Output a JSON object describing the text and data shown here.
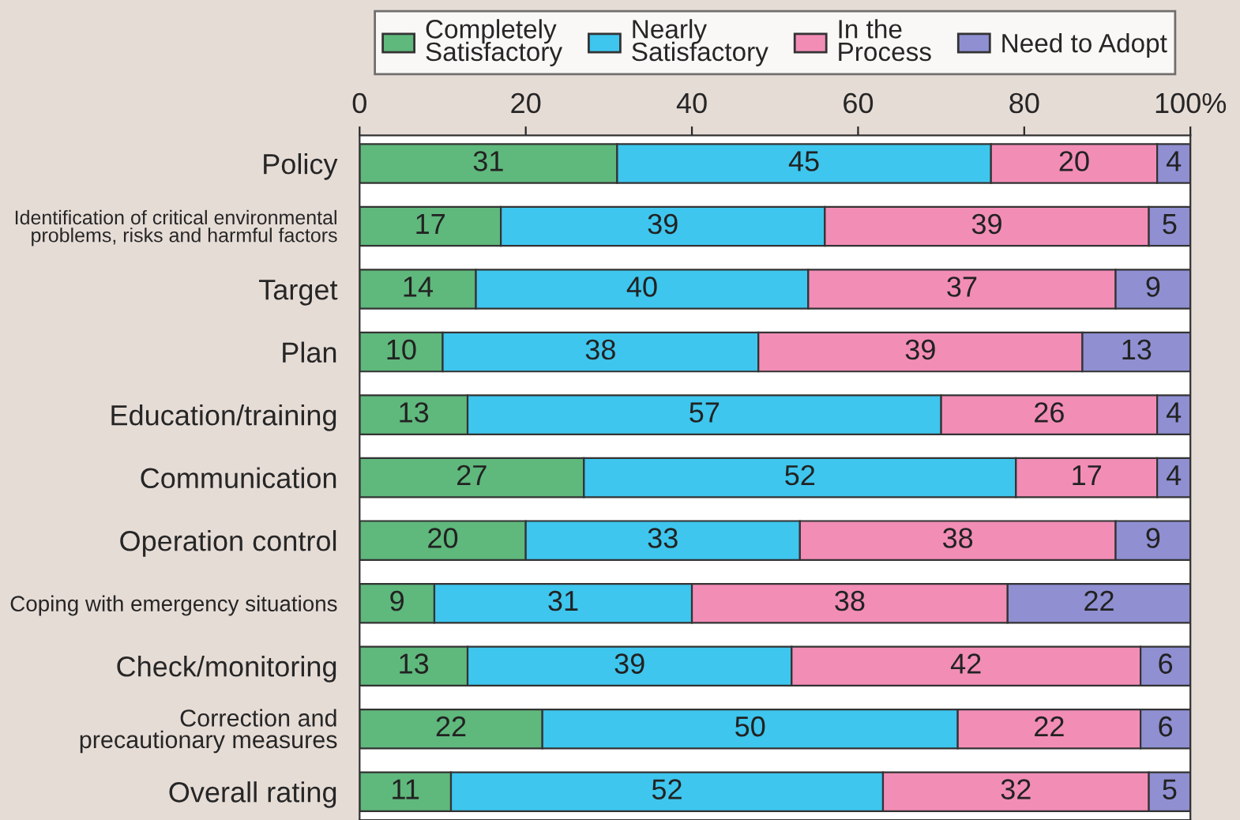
{
  "chart_data": {
    "type": "bar",
    "orientation": "horizontal",
    "stacked": true,
    "data_labels": true,
    "grid": false,
    "legend": "top",
    "categories": [
      "Policy",
      "Identification of critical environmental\nproblems, risks and harmful factors",
      "Target",
      "Plan",
      "Education/training",
      "Communication",
      "Operation control",
      "Coping with emergency situations",
      "Check/monitoring",
      "Correction and\nprecautionary measures",
      "Overall rating"
    ],
    "series": [
      {
        "name": "Completely\nSatisfactory",
        "color": "#5fb87c",
        "values": [
          31,
          17,
          14,
          10,
          13,
          27,
          20,
          9,
          13,
          22,
          11
        ]
      },
      {
        "name": "Nearly\nSatisfactory",
        "color": "#3ec6ee",
        "values": [
          45,
          39,
          40,
          38,
          57,
          52,
          33,
          31,
          39,
          50,
          52
        ]
      },
      {
        "name": "In the\nProcess",
        "color": "#f28db6",
        "values": [
          20,
          39,
          37,
          39,
          26,
          17,
          38,
          38,
          42,
          22,
          32
        ]
      },
      {
        "name": "Need to Adopt",
        "color": "#8f8fd2",
        "values": [
          4,
          5,
          9,
          13,
          4,
          4,
          9,
          22,
          6,
          6,
          5
        ]
      }
    ],
    "xlim": [
      0,
      100
    ],
    "xticks": [
      0,
      20,
      40,
      60,
      80,
      {
        "value": 100,
        "label": "100%"
      }
    ]
  }
}
